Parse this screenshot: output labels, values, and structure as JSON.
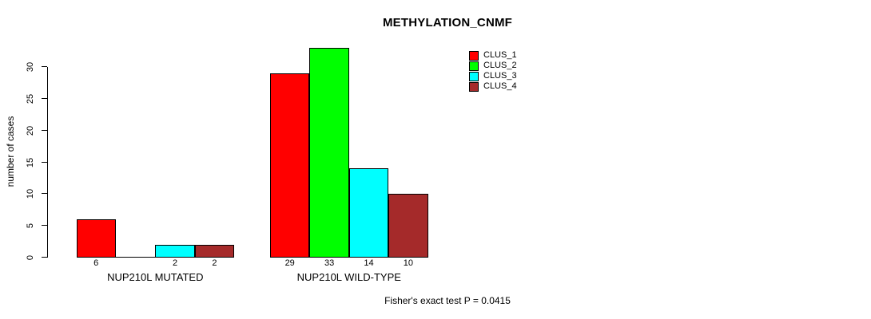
{
  "chart_data": {
    "type": "bar",
    "title": "METHYLATION_CNMF",
    "ylabel": "number of cases",
    "xlabel": "",
    "ylim": [
      0,
      33
    ],
    "yticks": [
      0,
      5,
      10,
      15,
      20,
      25,
      30
    ],
    "categories": [
      "NUP210L MUTATED",
      "NUP210L WILD-TYPE"
    ],
    "series": [
      {
        "name": "CLUS_1",
        "color": "#FF0000",
        "values": [
          6,
          29
        ]
      },
      {
        "name": "CLUS_2",
        "color": "#00FF00",
        "values": [
          0,
          33
        ]
      },
      {
        "name": "CLUS_3",
        "color": "#00FFFF",
        "values": [
          2,
          14
        ]
      },
      {
        "name": "CLUS_4",
        "color": "#A52A2A",
        "values": [
          2,
          10
        ]
      }
    ],
    "bar_value_labels_shown": true,
    "zero_values_unlabeled": true,
    "annotation": "Fisher's exact test P = 0.0415",
    "legend_position": "top-right",
    "legend_border": false,
    "grid": false,
    "background": "#FFFFFF",
    "axis_color": "#000000"
  }
}
